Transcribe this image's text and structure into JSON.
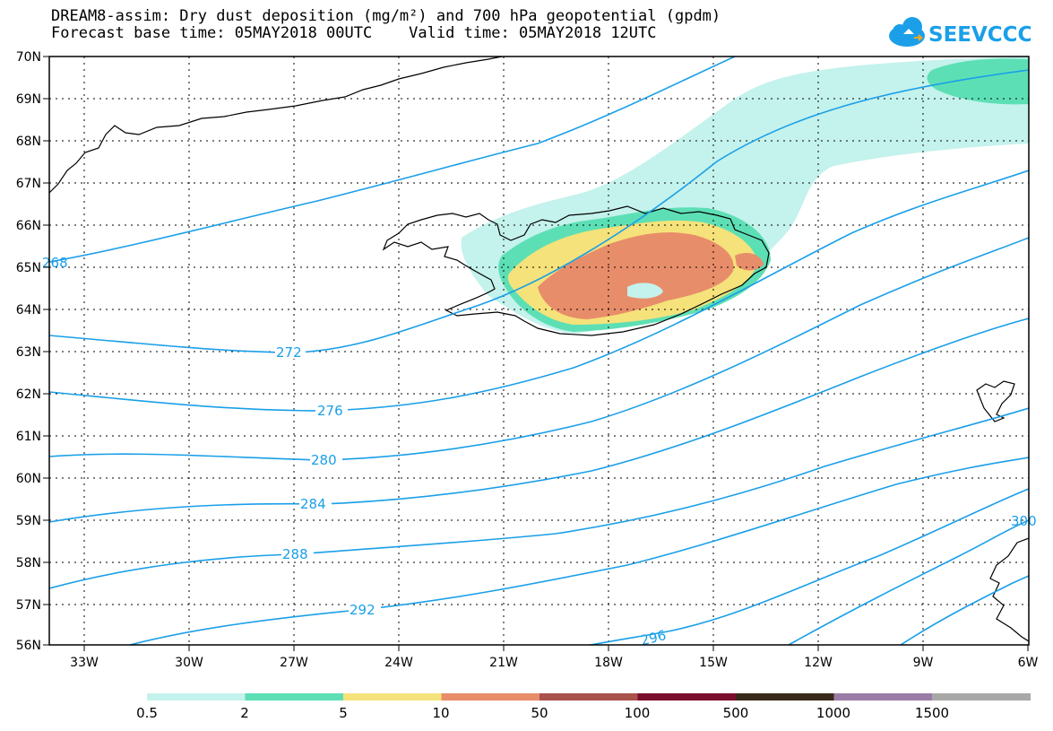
{
  "title_line1": "DREAM8-assim: Dry dust deposition (mg/m²) and 700 hPa geopotential (gpdm)",
  "title_line2": "Forecast base time: 05MAY2018 00UTC    Valid time: 05MAY2018 12UTC",
  "logo_text": "SEEVCCC",
  "map": {
    "lat_labels": [
      "70N",
      "69N",
      "68N",
      "67N",
      "66N",
      "65N",
      "64N",
      "63N",
      "62N",
      "61N",
      "60N",
      "59N",
      "58N",
      "57N",
      "56N"
    ],
    "lon_labels": [
      "33W",
      "30W",
      "27W",
      "24W",
      "21W",
      "18W",
      "15W",
      "12W",
      "9W",
      "6W"
    ],
    "contour_labels": [
      "268",
      "272",
      "276",
      "280",
      "284",
      "288",
      "292",
      "296",
      "300"
    ],
    "contour_color": "#1a9fe8"
  },
  "colorbar": {
    "labels": [
      "0.5",
      "2",
      "5",
      "10",
      "50",
      "100",
      "500",
      "1000",
      "1500"
    ],
    "colors": [
      "#c4f2ec",
      "#5ddfb5",
      "#f5e27a",
      "#e88d6a",
      "#a9514b",
      "#7a0e2c",
      "#3a2a1a",
      "#9a7ca6",
      "#a8a8a8"
    ]
  }
}
